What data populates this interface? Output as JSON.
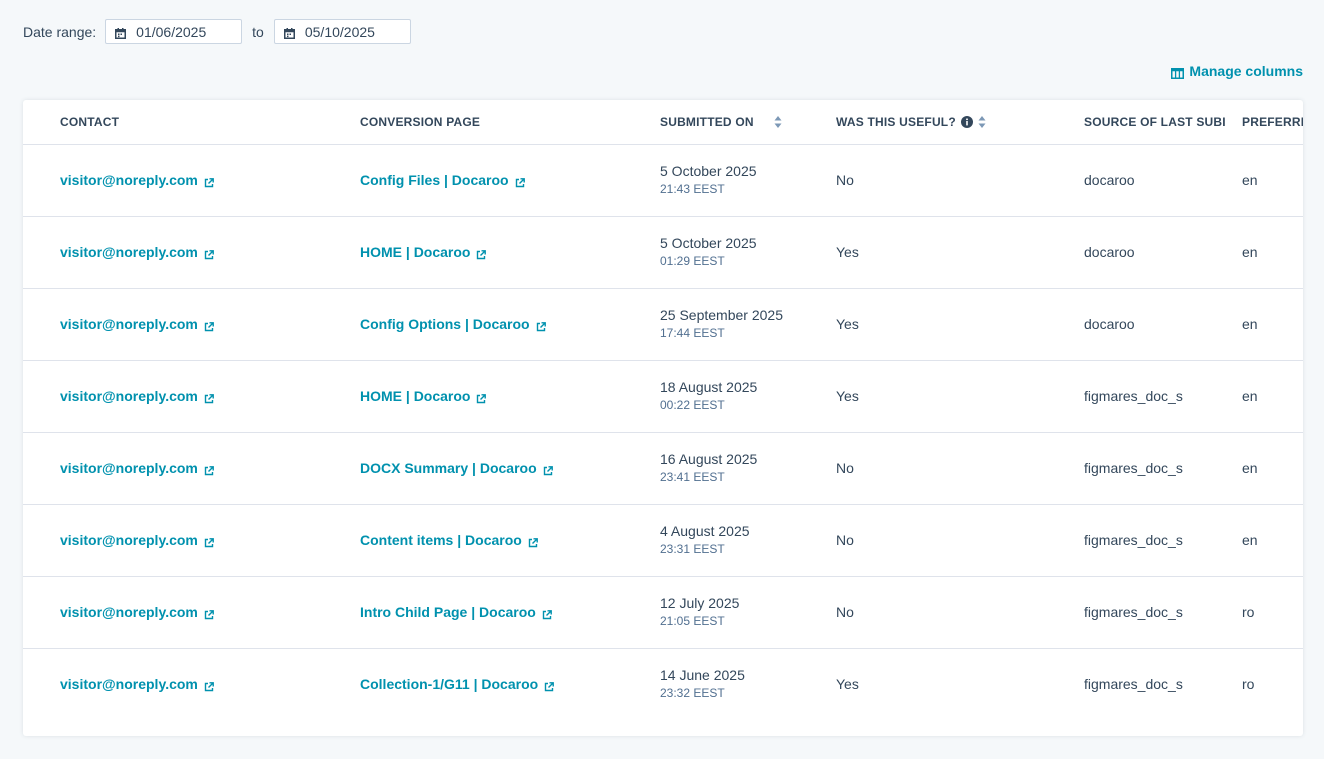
{
  "filters": {
    "date_range_label": "Date range:",
    "from_date": "01/06/2025",
    "to_label": "to",
    "to_date": "05/10/2025"
  },
  "toolbar": {
    "manage_columns_label": "Manage columns"
  },
  "colors": {
    "link": "#0091ae",
    "text": "#33475b",
    "border": "#dfe3eb",
    "background": "#f5f8fa"
  },
  "table": {
    "headers": {
      "contact": "CONTACT",
      "conversion_page": "CONVERSION PAGE",
      "submitted_on": "SUBMITTED ON",
      "was_useful": "WAS THIS USEFUL?",
      "source": "SOURCE OF LAST SUBI",
      "preferred": "PREFERRE"
    },
    "rows": [
      {
        "contact": "visitor@noreply.com",
        "page": "Config Files | Docaroo",
        "date": "5 October 2025",
        "time": "21:43 EEST",
        "useful": "No",
        "source": "docaroo",
        "pref": "en"
      },
      {
        "contact": "visitor@noreply.com",
        "page": "HOME | Docaroo",
        "date": "5 October 2025",
        "time": "01:29 EEST",
        "useful": "Yes",
        "source": "docaroo",
        "pref": "en"
      },
      {
        "contact": "visitor@noreply.com",
        "page": "Config Options | Docaroo",
        "date": "25 September 2025",
        "time": "17:44 EEST",
        "useful": "Yes",
        "source": "docaroo",
        "pref": "en"
      },
      {
        "contact": "visitor@noreply.com",
        "page": "HOME | Docaroo",
        "date": "18 August 2025",
        "time": "00:22 EEST",
        "useful": "Yes",
        "source": "figmares_doc_s",
        "pref": "en"
      },
      {
        "contact": "visitor@noreply.com",
        "page": "DOCX Summary | Docaroo",
        "date": "16 August 2025",
        "time": "23:41 EEST",
        "useful": "No",
        "source": "figmares_doc_s",
        "pref": "en"
      },
      {
        "contact": "visitor@noreply.com",
        "page": "Content items | Docaroo",
        "date": "4 August 2025",
        "time": "23:31 EEST",
        "useful": "No",
        "source": "figmares_doc_s",
        "pref": "en"
      },
      {
        "contact": "visitor@noreply.com",
        "page": "Intro Child Page | Docaroo",
        "date": "12 July 2025",
        "time": "21:05 EEST",
        "useful": "No",
        "source": "figmares_doc_s",
        "pref": "ro"
      },
      {
        "contact": "visitor@noreply.com",
        "page": "Collection-1/G11 | Docaroo",
        "date": "14 June 2025",
        "time": "23:32 EEST",
        "useful": "Yes",
        "source": "figmares_doc_s",
        "pref": "ro"
      }
    ]
  }
}
